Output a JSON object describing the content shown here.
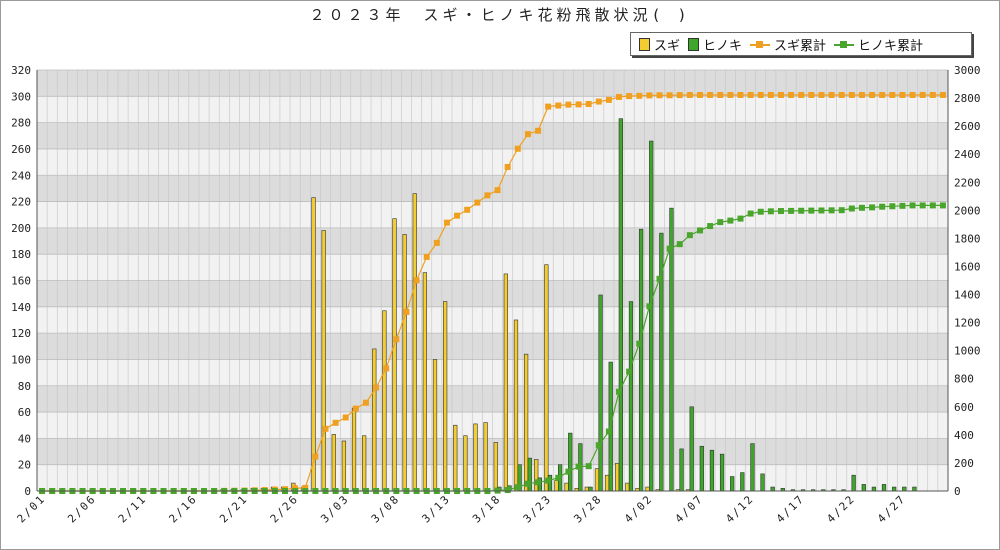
{
  "chart_data": {
    "type": "bar",
    "title": "２０２３年　スギ・ヒノキ花粉飛散状況( )",
    "legend_position": "top-right",
    "grid": true,
    "colors": {
      "sugi": "#f2cc30",
      "hinoki": "#3ea62a",
      "sugi_cumulative": "#f0a020",
      "hinoki_cumulative": "#4aa52c"
    },
    "y_left": {
      "ylim": [
        0,
        320
      ],
      "ticks": [
        "0",
        "20",
        "40",
        "60",
        "80",
        "100",
        "120",
        "140",
        "160",
        "180",
        "200",
        "220",
        "240",
        "260",
        "280",
        "300",
        "320"
      ]
    },
    "y_right": {
      "ylim": [
        0,
        3000
      ],
      "ticks": [
        "0",
        "200",
        "400",
        "600",
        "800",
        "1000",
        "1200",
        "1400",
        "1600",
        "1800",
        "2000",
        "2200",
        "2400",
        "2600",
        "2800",
        "3000"
      ]
    },
    "x_ticks": [
      {
        "day": 0,
        "label": "2/01"
      },
      {
        "day": 5,
        "label": "2/06"
      },
      {
        "day": 10,
        "label": "2/11"
      },
      {
        "day": 15,
        "label": "2/16"
      },
      {
        "day": 20,
        "label": "2/21"
      },
      {
        "day": 25,
        "label": "2/26"
      },
      {
        "day": 30,
        "label": "3/03"
      },
      {
        "day": 35,
        "label": "3/08"
      },
      {
        "day": 40,
        "label": "3/13"
      },
      {
        "day": 45,
        "label": "3/18"
      },
      {
        "day": 50,
        "label": "3/23"
      },
      {
        "day": 55,
        "label": "3/28"
      },
      {
        "day": 60,
        "label": "4/02"
      },
      {
        "day": 65,
        "label": "4/07"
      },
      {
        "day": 70,
        "label": "4/12"
      },
      {
        "day": 75,
        "label": "4/17"
      },
      {
        "day": 80,
        "label": "4/22"
      },
      {
        "day": 85,
        "label": "4/27"
      }
    ],
    "series": [
      {
        "name": "スギ",
        "kind": "bar",
        "axis": "left",
        "values": [
          0,
          0,
          0,
          0,
          0,
          0,
          0,
          0,
          0,
          0,
          0,
          0,
          0,
          0,
          0,
          0,
          0,
          0,
          1,
          1,
          1,
          2,
          2,
          3,
          3,
          6,
          3,
          223,
          198,
          43,
          38,
          63,
          42,
          108,
          137,
          207,
          195,
          226,
          166,
          100,
          144,
          50,
          42,
          51,
          52,
          37,
          165,
          130,
          104,
          24,
          172,
          8,
          6,
          2,
          3,
          17,
          12,
          21,
          6,
          2,
          3,
          1,
          0,
          1,
          1,
          0,
          0,
          0,
          0,
          0,
          0,
          0,
          0,
          0,
          0,
          0,
          0,
          0,
          0,
          0,
          0,
          0,
          0,
          0,
          0,
          0,
          0,
          0,
          0,
          0
        ]
      },
      {
        "name": "ヒノキ",
        "kind": "bar",
        "axis": "left",
        "values": [
          0,
          0,
          0,
          0,
          0,
          0,
          0,
          0,
          0,
          0,
          0,
          0,
          0,
          0,
          0,
          0,
          0,
          0,
          0,
          0,
          0,
          0,
          0,
          0,
          0,
          0,
          0,
          0,
          0,
          0,
          0,
          0,
          0,
          0,
          0,
          0,
          0,
          0,
          0,
          0,
          0,
          0,
          0,
          0,
          0,
          3,
          4,
          20,
          25,
          10,
          12,
          20,
          44,
          36,
          3,
          149,
          98,
          283,
          144,
          199,
          266,
          196,
          215,
          32,
          64,
          34,
          31,
          28,
          11,
          14,
          36,
          13,
          3,
          2,
          1,
          1,
          1,
          1,
          1,
          1,
          12,
          5,
          3,
          5,
          3,
          3,
          3,
          0,
          0,
          0
        ]
      },
      {
        "name": "スギ累計",
        "kind": "line",
        "axis": "right",
        "values": [
          0,
          0,
          0,
          0,
          0,
          0,
          0,
          0,
          0,
          0,
          0,
          0,
          0,
          0,
          0,
          0,
          0,
          0,
          1,
          2,
          3,
          5,
          7,
          10,
          13,
          19,
          22,
          245,
          443,
          486,
          524,
          587,
          629,
          737,
          874,
          1081,
          1276,
          1502,
          1668,
          1768,
          1912,
          1962,
          2004,
          2055,
          2107,
          2144,
          2309,
          2439,
          2543,
          2567,
          2739,
          2747,
          2753,
          2755,
          2758,
          2775,
          2787,
          2808,
          2814,
          2816,
          2819,
          2820,
          2820,
          2821,
          2822,
          2822,
          2822,
          2822,
          2822,
          2822,
          2822,
          2822,
          2822,
          2822,
          2822,
          2822,
          2822,
          2822,
          2822,
          2822,
          2822,
          2822,
          2822,
          2822,
          2822,
          2822,
          2822,
          2822,
          2822,
          2822
        ]
      },
      {
        "name": "ヒノキ累計",
        "kind": "line",
        "axis": "right",
        "values": [
          0,
          0,
          0,
          0,
          0,
          0,
          0,
          0,
          0,
          0,
          0,
          0,
          0,
          0,
          0,
          0,
          0,
          0,
          0,
          0,
          0,
          0,
          0,
          0,
          0,
          0,
          0,
          0,
          0,
          0,
          0,
          0,
          0,
          0,
          0,
          0,
          0,
          0,
          0,
          0,
          0,
          0,
          0,
          0,
          0,
          3,
          7,
          27,
          52,
          62,
          74,
          94,
          138,
          174,
          177,
          326,
          424,
          707,
          851,
          1050,
          1316,
          1512,
          1727,
          1759,
          1823,
          1857,
          1888,
          1916,
          1927,
          1941,
          1977,
          1990,
          1993,
          1995,
          1996,
          1997,
          1998,
          1999,
          2000,
          2001,
          2013,
          2018,
          2021,
          2026,
          2029,
          2032,
          2035,
          2035,
          2035,
          2035
        ]
      }
    ]
  }
}
